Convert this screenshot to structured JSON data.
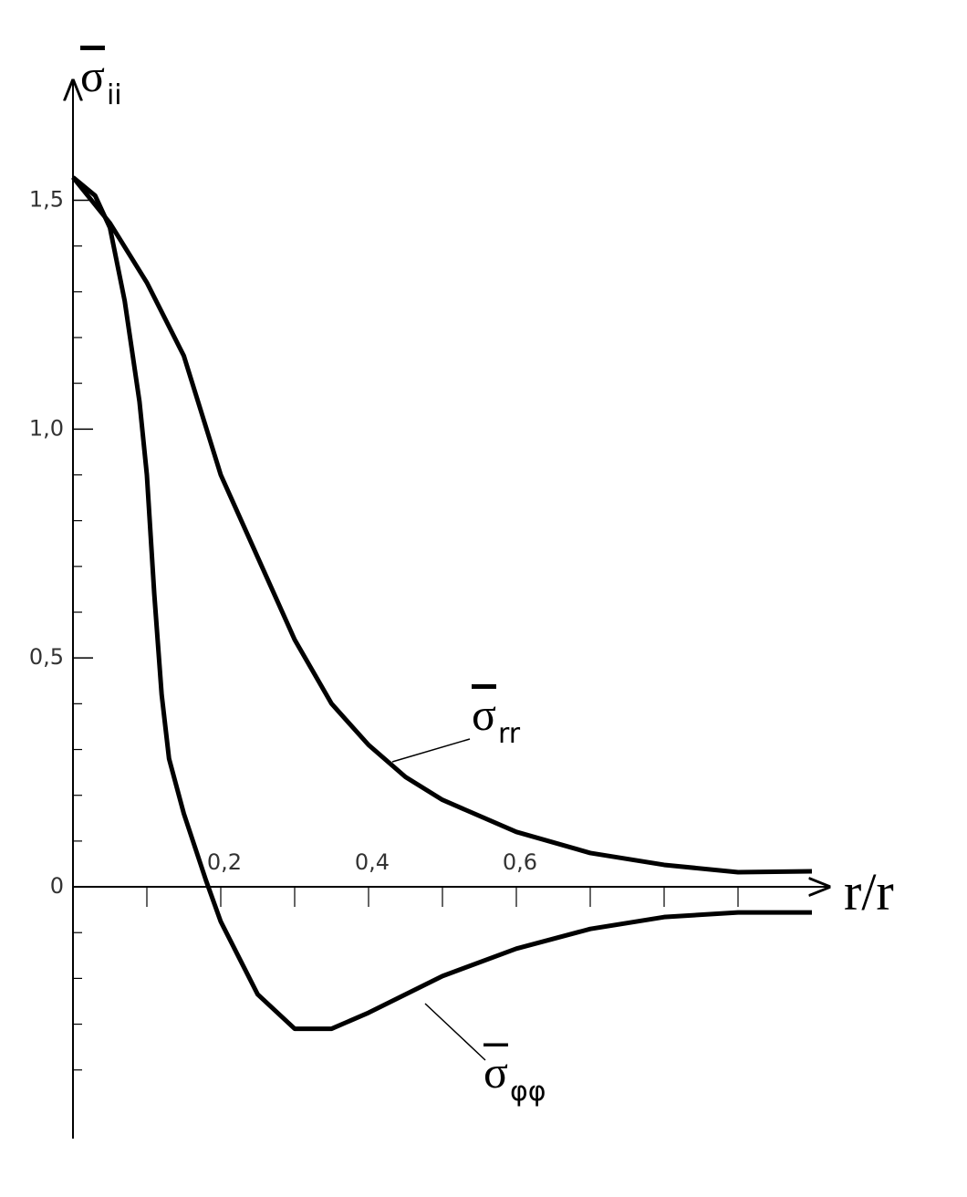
{
  "chart_data": {
    "type": "line",
    "ylabel": "σii",
    "xlabel": "r/r",
    "xlim": [
      0,
      1.01
    ],
    "ylim": [
      -0.55,
      1.76
    ],
    "xticks": [
      {
        "value": 0.2,
        "label": "0,2"
      },
      {
        "value": 0.4,
        "label": "0,4"
      },
      {
        "value": 0.6,
        "label": "0,6"
      }
    ],
    "xminorticks": [
      0.1,
      0.3,
      0.5,
      0.7,
      0.8,
      0.9
    ],
    "yticks": [
      0,
      {
        "value": 0.5,
        "label": "0,5"
      },
      {
        "value": 1.0,
        "label": "1,0"
      },
      {
        "value": 1.5,
        "label": "1,5"
      }
    ],
    "yminorticks": [
      -0.4,
      -0.3,
      -0.2,
      -0.1,
      0.1,
      0.2,
      0.3,
      0.4,
      0.6,
      0.7,
      0.8,
      0.9,
      1.1,
      1.2,
      1.3,
      1.4
    ],
    "series": [
      {
        "name": "σrr",
        "color": "#000000",
        "x": [
          0,
          0.05,
          0.1,
          0.15,
          0.2,
          0.25,
          0.3,
          0.35,
          0.4,
          0.45,
          0.5,
          0.6,
          0.7,
          0.8,
          0.9,
          1.0
        ],
        "values": [
          1.55,
          1.45,
          1.32,
          1.16,
          0.9,
          0.72,
          0.54,
          0.4,
          0.31,
          0.24,
          0.19,
          0.12,
          0.074,
          0.048,
          0.032,
          0.034
        ]
      },
      {
        "name": "σφφ",
        "color": "#000000",
        "x": [
          0,
          0.03,
          0.05,
          0.07,
          0.09,
          0.1,
          0.11,
          0.12,
          0.13,
          0.15,
          0.18,
          0.2,
          0.25,
          0.3,
          0.35,
          0.4,
          0.5,
          0.6,
          0.7,
          0.8,
          0.9,
          1.0
        ],
        "values": [
          1.55,
          1.51,
          1.44,
          1.28,
          1.06,
          0.9,
          0.64,
          0.42,
          0.28,
          0.16,
          0.014,
          -0.076,
          -0.235,
          -0.31,
          -0.31,
          -0.275,
          -0.195,
          -0.135,
          -0.092,
          -0.066,
          -0.056,
          -0.056
        ]
      }
    ]
  }
}
